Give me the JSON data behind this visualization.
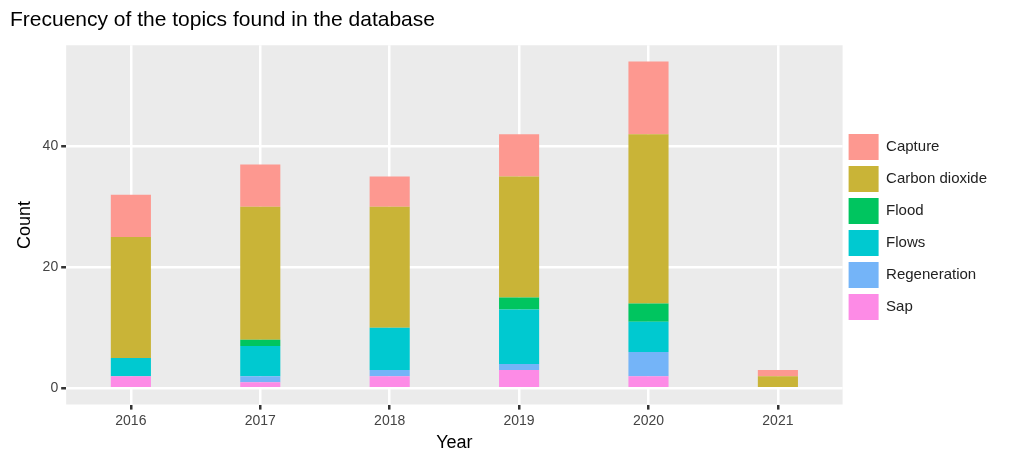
{
  "chart_data": {
    "type": "bar",
    "title": "Frecuency of the topics found in the database",
    "xlabel": "Year",
    "ylabel": "Count",
    "categories": [
      "2016",
      "2017",
      "2018",
      "2019",
      "2020",
      "2021"
    ],
    "stacked": true,
    "ylim": [
      -2.7,
      56.7
    ],
    "yticks": [
      0,
      20,
      40
    ],
    "grid": true,
    "legend": "right",
    "series": [
      {
        "name": "Sap",
        "color": "#fd8be6",
        "values": [
          2,
          1,
          2,
          3,
          2,
          0
        ]
      },
      {
        "name": "Regeneration",
        "color": "#74b4f8",
        "values": [
          0,
          1,
          1,
          1,
          4,
          0
        ]
      },
      {
        "name": "Flows",
        "color": "#00c9d0",
        "values": [
          3,
          5,
          7,
          9,
          5,
          0
        ]
      },
      {
        "name": "Flood",
        "color": "#00c55f",
        "values": [
          0,
          1,
          0,
          2,
          3,
          0
        ]
      },
      {
        "name": "Carbon dioxide",
        "color": "#c9b437",
        "values": [
          20,
          22,
          20,
          20,
          28,
          2
        ]
      },
      {
        "name": "Capture",
        "color": "#fd9890",
        "values": [
          7,
          7,
          5,
          7,
          12,
          1
        ]
      }
    ]
  }
}
